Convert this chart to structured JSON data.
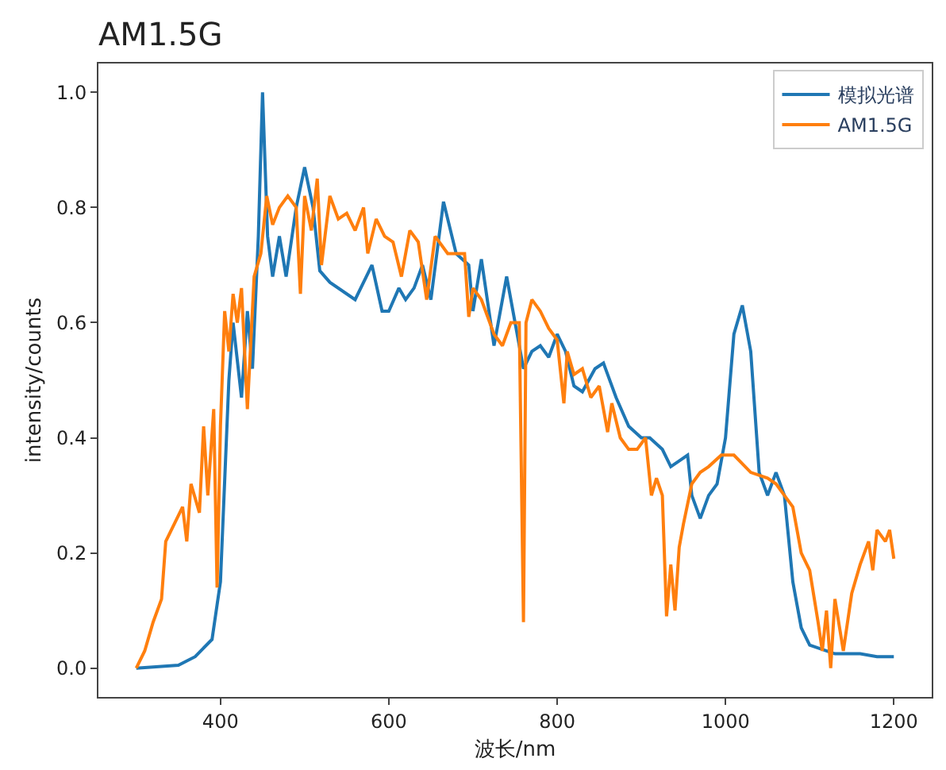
{
  "chart_data": {
    "type": "line",
    "title": "AM1.5G",
    "xlabel": "波长/nm",
    "ylabel": "intensity/counts",
    "xlim": [
      255,
      1245
    ],
    "ylim": [
      -0.05,
      1.05
    ],
    "xticks": [
      400,
      600,
      800,
      1000,
      1200
    ],
    "yticks": [
      {
        "value": 0,
        "label": "0.0"
      },
      {
        "value": 0.2,
        "label": "0.2"
      },
      {
        "value": 0.4,
        "label": "0.4"
      },
      {
        "value": 0.6,
        "label": "0.6"
      },
      {
        "value": 0.8,
        "label": "0.8"
      },
      {
        "value": 1,
        "label": "1.0"
      }
    ],
    "legend": "top right",
    "marker": "none",
    "line_style": "solid",
    "series": [
      {
        "name": "模拟光谱",
        "color": "#1f77b4",
        "x": [
          300,
          350,
          370,
          390,
          400,
          410,
          415,
          425,
          432,
          438,
          445,
          450,
          456,
          462,
          470,
          478,
          490,
          500,
          510,
          518,
          530,
          560,
          580,
          592,
          600,
          612,
          620,
          630,
          640,
          650,
          665,
          680,
          695,
          700,
          710,
          725,
          740,
          750,
          760,
          770,
          780,
          790,
          800,
          810,
          820,
          830,
          845,
          855,
          870,
          885,
          900,
          910,
          925,
          935,
          945,
          955,
          960,
          970,
          980,
          990,
          1000,
          1010,
          1020,
          1030,
          1040,
          1050,
          1060,
          1070,
          1080,
          1090,
          1100,
          1130,
          1160,
          1180,
          1200
        ],
        "values": [
          0,
          0.005,
          0.02,
          0.05,
          0.15,
          0.5,
          0.6,
          0.47,
          0.62,
          0.52,
          0.75,
          1.0,
          0.75,
          0.68,
          0.75,
          0.68,
          0.8,
          0.87,
          0.8,
          0.69,
          0.67,
          0.64,
          0.7,
          0.62,
          0.62,
          0.66,
          0.64,
          0.66,
          0.7,
          0.64,
          0.81,
          0.72,
          0.7,
          0.62,
          0.71,
          0.56,
          0.68,
          0.6,
          0.52,
          0.55,
          0.56,
          0.54,
          0.58,
          0.55,
          0.49,
          0.48,
          0.52,
          0.53,
          0.47,
          0.42,
          0.4,
          0.4,
          0.38,
          0.35,
          0.36,
          0.37,
          0.3,
          0.26,
          0.3,
          0.32,
          0.4,
          0.58,
          0.63,
          0.55,
          0.34,
          0.3,
          0.34,
          0.3,
          0.15,
          0.07,
          0.04,
          0.025,
          0.025,
          0.02,
          0.02
        ]
      },
      {
        "name": "AM1.5G",
        "color": "#ff7f0e",
        "x": [
          300,
          310,
          320,
          330,
          335,
          345,
          355,
          360,
          365,
          375,
          380,
          385,
          392,
          396,
          400,
          405,
          410,
          415,
          420,
          425,
          432,
          440,
          448,
          455,
          462,
          470,
          480,
          490,
          495,
          500,
          508,
          515,
          520,
          530,
          540,
          550,
          560,
          570,
          575,
          585,
          595,
          605,
          615,
          625,
          635,
          645,
          655,
          670,
          690,
          695,
          700,
          710,
          720,
          725,
          735,
          745,
          755,
          760,
          763,
          770,
          780,
          790,
          800,
          808,
          812,
          820,
          830,
          840,
          850,
          860,
          865,
          875,
          885,
          895,
          905,
          912,
          918,
          925,
          930,
          935,
          940,
          945,
          950,
          960,
          970,
          980,
          995,
          1010,
          1030,
          1050,
          1060,
          1070,
          1080,
          1090,
          1100,
          1110,
          1115,
          1120,
          1125,
          1130,
          1140,
          1150,
          1160,
          1170,
          1175,
          1180,
          1190,
          1195,
          1200
        ],
        "values": [
          0,
          0.03,
          0.08,
          0.12,
          0.22,
          0.25,
          0.28,
          0.22,
          0.32,
          0.27,
          0.42,
          0.3,
          0.45,
          0.14,
          0.42,
          0.62,
          0.55,
          0.65,
          0.6,
          0.66,
          0.45,
          0.68,
          0.72,
          0.82,
          0.77,
          0.8,
          0.82,
          0.8,
          0.65,
          0.82,
          0.76,
          0.85,
          0.7,
          0.82,
          0.78,
          0.79,
          0.76,
          0.8,
          0.72,
          0.78,
          0.75,
          0.74,
          0.68,
          0.76,
          0.74,
          0.64,
          0.75,
          0.72,
          0.72,
          0.61,
          0.66,
          0.64,
          0.6,
          0.58,
          0.56,
          0.6,
          0.6,
          0.08,
          0.6,
          0.64,
          0.62,
          0.59,
          0.57,
          0.46,
          0.55,
          0.51,
          0.52,
          0.47,
          0.49,
          0.41,
          0.46,
          0.4,
          0.38,
          0.38,
          0.4,
          0.3,
          0.33,
          0.3,
          0.09,
          0.18,
          0.1,
          0.21,
          0.25,
          0.32,
          0.34,
          0.35,
          0.37,
          0.37,
          0.34,
          0.33,
          0.32,
          0.3,
          0.28,
          0.2,
          0.17,
          0.08,
          0.03,
          0.1,
          0.0,
          0.12,
          0.03,
          0.13,
          0.18,
          0.22,
          0.17,
          0.24,
          0.22,
          0.24,
          0.19
        ]
      }
    ]
  }
}
